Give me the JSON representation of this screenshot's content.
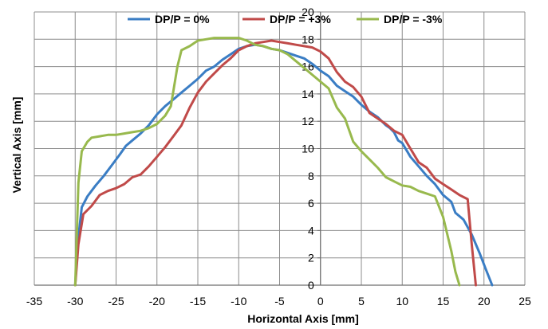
{
  "chart_data": {
    "type": "line",
    "xlabel": "Horizontal Axis [mm]",
    "ylabel": "Vertical Axis [mm]",
    "xlim": [
      -35,
      25
    ],
    "ylim": [
      0,
      20
    ],
    "x_ticks": [
      -35,
      -30,
      -25,
      -20,
      -15,
      -10,
      -5,
      0,
      5,
      10,
      15,
      20,
      25
    ],
    "y_ticks": [
      0,
      2,
      4,
      6,
      8,
      10,
      12,
      14,
      16,
      18,
      20
    ],
    "grid": true,
    "legend_position": "top",
    "series": [
      {
        "name": "DP/P = 0%",
        "color": "#3a7dc4",
        "points": [
          [
            -30,
            0
          ],
          [
            -29.7,
            3
          ],
          [
            -29.2,
            5.7
          ],
          [
            -28.5,
            6.5
          ],
          [
            -27.5,
            7.3
          ],
          [
            -26.5,
            8.0
          ],
          [
            -25.5,
            8.8
          ],
          [
            -24.5,
            9.6
          ],
          [
            -23.8,
            10.2
          ],
          [
            -23,
            10.6
          ],
          [
            -22,
            11.1
          ],
          [
            -21,
            11.7
          ],
          [
            -20,
            12.5
          ],
          [
            -19,
            13.1
          ],
          [
            -18,
            13.6
          ],
          [
            -17,
            14.1
          ],
          [
            -16,
            14.6
          ],
          [
            -15,
            15.1
          ],
          [
            -14,
            15.7
          ],
          [
            -13,
            16.0
          ],
          [
            -12,
            16.5
          ],
          [
            -11,
            16.9
          ],
          [
            -10,
            17.3
          ],
          [
            -9,
            17.5
          ],
          [
            -8,
            17.6
          ],
          [
            -7,
            17.5
          ],
          [
            -6,
            17.3
          ],
          [
            -5,
            17.2
          ],
          [
            -4,
            17.0
          ],
          [
            -3,
            16.8
          ],
          [
            -2,
            16.6
          ],
          [
            -1,
            16.2
          ],
          [
            0,
            15.7
          ],
          [
            1,
            15.3
          ],
          [
            2,
            14.6
          ],
          [
            3,
            14.2
          ],
          [
            4,
            13.8
          ],
          [
            5,
            13.2
          ],
          [
            6,
            12.7
          ],
          [
            7,
            12.3
          ],
          [
            8,
            11.7
          ],
          [
            8.5,
            11.5
          ],
          [
            9,
            11.2
          ],
          [
            9.5,
            10.6
          ],
          [
            10,
            10.4
          ],
          [
            11,
            9.4
          ],
          [
            12,
            8.7
          ],
          [
            13,
            8.0
          ],
          [
            14,
            7.4
          ],
          [
            15,
            6.6
          ],
          [
            16,
            6.1
          ],
          [
            16.5,
            5.3
          ],
          [
            17.5,
            4.8
          ],
          [
            18.5,
            3.7
          ],
          [
            19.5,
            2.3
          ],
          [
            20.2,
            1.2
          ],
          [
            21,
            0
          ]
        ]
      },
      {
        "name": "DP/P = +3%",
        "color": "#c04a49",
        "points": [
          [
            -30,
            0
          ],
          [
            -29.6,
            3
          ],
          [
            -29,
            5.2
          ],
          [
            -28,
            5.8
          ],
          [
            -27,
            6.6
          ],
          [
            -26,
            6.9
          ],
          [
            -25,
            7.1
          ],
          [
            -24,
            7.4
          ],
          [
            -23,
            7.9
          ],
          [
            -22,
            8.1
          ],
          [
            -21,
            8.7
          ],
          [
            -20,
            9.4
          ],
          [
            -19,
            10.1
          ],
          [
            -18,
            10.9
          ],
          [
            -17,
            11.7
          ],
          [
            -16,
            13.0
          ],
          [
            -15,
            14.1
          ],
          [
            -14,
            14.9
          ],
          [
            -13,
            15.5
          ],
          [
            -12,
            16.1
          ],
          [
            -11,
            16.6
          ],
          [
            -10,
            17.2
          ],
          [
            -9,
            17.5
          ],
          [
            -8,
            17.7
          ],
          [
            -7,
            17.8
          ],
          [
            -6,
            17.9
          ],
          [
            -5,
            17.8
          ],
          [
            -4,
            17.7
          ],
          [
            -3,
            17.6
          ],
          [
            -2,
            17.5
          ],
          [
            -1,
            17.4
          ],
          [
            0,
            17.1
          ],
          [
            1,
            16.6
          ],
          [
            2,
            15.6
          ],
          [
            3,
            14.9
          ],
          [
            4,
            14.5
          ],
          [
            5,
            13.8
          ],
          [
            6,
            12.6
          ],
          [
            7,
            12.2
          ],
          [
            8,
            11.8
          ],
          [
            9,
            11.3
          ],
          [
            10,
            11.0
          ],
          [
            11,
            10.0
          ],
          [
            12,
            9.0
          ],
          [
            13,
            8.6
          ],
          [
            14,
            7.8
          ],
          [
            15,
            7.4
          ],
          [
            16,
            7.0
          ],
          [
            17,
            6.6
          ],
          [
            18,
            6.3
          ],
          [
            18.5,
            3.0
          ],
          [
            19,
            0
          ]
        ]
      },
      {
        "name": "DP/P = -3%",
        "color": "#98b94d",
        "points": [
          [
            -30,
            0
          ],
          [
            -29.6,
            7.5
          ],
          [
            -29.2,
            9.8
          ],
          [
            -28.5,
            10.5
          ],
          [
            -28,
            10.8
          ],
          [
            -27,
            10.9
          ],
          [
            -26,
            11.0
          ],
          [
            -25,
            11.0
          ],
          [
            -24,
            11.1
          ],
          [
            -23,
            11.2
          ],
          [
            -22,
            11.3
          ],
          [
            -21,
            11.5
          ],
          [
            -20,
            11.8
          ],
          [
            -19,
            12.4
          ],
          [
            -18.3,
            13.1
          ],
          [
            -17.5,
            16.0
          ],
          [
            -17,
            17.2
          ],
          [
            -16,
            17.5
          ],
          [
            -15,
            17.9
          ],
          [
            -14,
            18.0
          ],
          [
            -13,
            18.1
          ],
          [
            -12,
            18.1
          ],
          [
            -11,
            18.1
          ],
          [
            -10,
            18.1
          ],
          [
            -9,
            17.9
          ],
          [
            -8,
            17.6
          ],
          [
            -7,
            17.5
          ],
          [
            -6,
            17.3
          ],
          [
            -5,
            17.2
          ],
          [
            -4,
            16.9
          ],
          [
            -3,
            16.4
          ],
          [
            -2,
            15.9
          ],
          [
            -1,
            15.4
          ],
          [
            0,
            14.9
          ],
          [
            1,
            14.4
          ],
          [
            2,
            13.0
          ],
          [
            3,
            12.2
          ],
          [
            4,
            10.5
          ],
          [
            5,
            9.8
          ],
          [
            6,
            9.2
          ],
          [
            7,
            8.6
          ],
          [
            8,
            7.9
          ],
          [
            9,
            7.6
          ],
          [
            10,
            7.3
          ],
          [
            11,
            7.2
          ],
          [
            12,
            6.9
          ],
          [
            13,
            6.7
          ],
          [
            14,
            6.5
          ],
          [
            15,
            5.0
          ],
          [
            16,
            2.5
          ],
          [
            16.5,
            1.0
          ],
          [
            17,
            0
          ]
        ]
      }
    ]
  }
}
